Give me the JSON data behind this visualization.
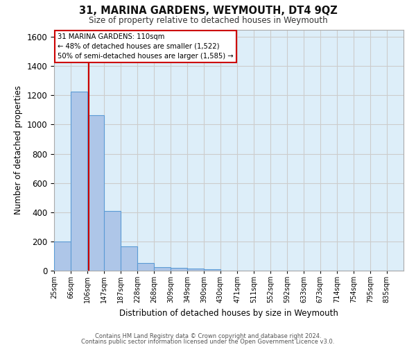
{
  "title": "31, MARINA GARDENS, WEYMOUTH, DT4 9QZ",
  "subtitle": "Size of property relative to detached houses in Weymouth",
  "xlabel": "Distribution of detached houses by size in Weymouth",
  "ylabel": "Number of detached properties",
  "footer_line1": "Contains HM Land Registry data © Crown copyright and database right 2024.",
  "footer_line2": "Contains public sector information licensed under the Open Government Licence v3.0.",
  "categories": [
    "25sqm",
    "66sqm",
    "106sqm",
    "147sqm",
    "187sqm",
    "228sqm",
    "268sqm",
    "309sqm",
    "349sqm",
    "390sqm",
    "430sqm",
    "471sqm",
    "511sqm",
    "552sqm",
    "592sqm",
    "633sqm",
    "673sqm",
    "714sqm",
    "754sqm",
    "795sqm",
    "835sqm"
  ],
  "values": [
    200,
    1225,
    1065,
    410,
    165,
    50,
    25,
    20,
    12,
    10,
    0,
    0,
    0,
    0,
    0,
    0,
    0,
    0,
    0,
    0,
    0
  ],
  "bar_color": "#aec6e8",
  "bar_edge_color": "#5b9bd5",
  "background_color": "#ffffff",
  "grid_color": "#cccccc",
  "plot_bg_color": "#ddeef9",
  "red_line_x": 110,
  "annotation_text": "31 MARINA GARDENS: 110sqm\n← 48% of detached houses are smaller (1,522)\n50% of semi-detached houses are larger (1,585) →",
  "annotation_box_color": "#ffffff",
  "annotation_box_edge": "#cc0000",
  "annotation_text_color": "#000000",
  "red_line_color": "#cc0000",
  "ylim": [
    0,
    1650
  ],
  "yticks": [
    0,
    200,
    400,
    600,
    800,
    1000,
    1200,
    1400,
    1600
  ],
  "bin_edges": [
    25,
    66,
    106,
    147,
    187,
    228,
    268,
    309,
    349,
    390,
    430,
    471,
    511,
    552,
    592,
    633,
    673,
    714,
    754,
    795,
    835,
    876
  ]
}
